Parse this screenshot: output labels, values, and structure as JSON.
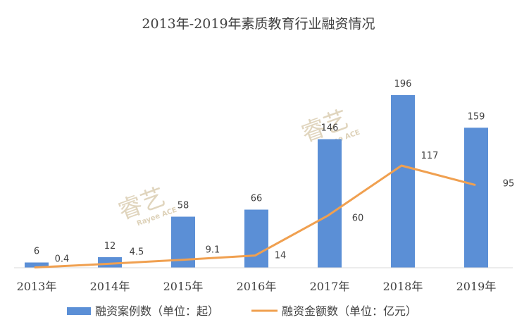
{
  "chart_data": {
    "type": "bar+line",
    "title": "2013年-2019年素质教育行业融资情况",
    "categories": [
      "2013年",
      "2014年",
      "2015年",
      "2016年",
      "2017年",
      "2018年",
      "2019年"
    ],
    "series": [
      {
        "name": "融资案例数（单位：起）",
        "kind": "bar",
        "color": "#5b8fd6",
        "values": [
          6,
          12,
          58,
          66,
          146,
          196,
          159
        ],
        "labels": [
          "6",
          "12",
          "58",
          "66",
          "146",
          "196",
          "159"
        ]
      },
      {
        "name": "融资金额数（单位：亿元）",
        "kind": "line",
        "color": "#f0a050",
        "values": [
          0.4,
          4.5,
          9.1,
          14,
          60,
          117,
          95
        ],
        "labels": [
          "0.4",
          "4.5",
          "9.1",
          "14",
          "60",
          "117",
          "95"
        ]
      }
    ],
    "legend_position": "bottom",
    "grid": false
  },
  "watermark": {
    "text": "睿艺",
    "sub": "Rayee ACE"
  }
}
